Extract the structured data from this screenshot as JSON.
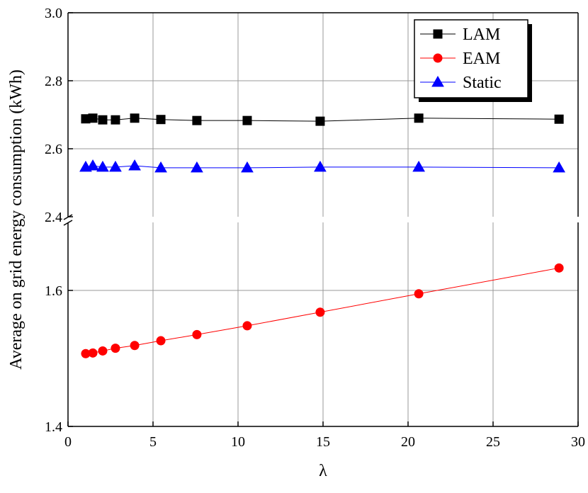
{
  "chart_data": [
    {
      "type": "line",
      "ylabel": "Average on grid energy consumption (kWh)",
      "x": [
        1.04,
        1.46,
        2.04,
        2.79,
        3.92,
        5.46,
        7.58,
        10.54,
        14.83,
        20.63,
        28.88
      ],
      "series": [
        {
          "name": "LAM",
          "color": "#000000",
          "marker": "square",
          "values": [
            2.688,
            2.69,
            2.685,
            2.685,
            2.69,
            2.686,
            2.683,
            2.683,
            2.681,
            2.69,
            2.687
          ]
        },
        {
          "name": "Static",
          "color": "#0000ff",
          "marker": "triangle",
          "values": [
            2.546,
            2.55,
            2.546,
            2.546,
            2.55,
            2.544,
            2.544,
            2.544,
            2.546,
            2.546,
            2.544
          ]
        }
      ],
      "xlim": [
        0,
        30
      ],
      "ylim": [
        2.4,
        3.0
      ],
      "yticks": [
        2.4,
        2.6,
        2.8,
        {
          "value": 3.0,
          "label": "3.0"
        }
      ],
      "grid": true,
      "legend": "upper-right"
    },
    {
      "type": "line",
      "xlabel": "λ",
      "x": [
        1.04,
        1.46,
        2.04,
        2.79,
        3.92,
        5.46,
        7.58,
        10.54,
        14.83,
        20.63,
        28.88
      ],
      "series": [
        {
          "name": "EAM",
          "color": "#ff0000",
          "marker": "circle",
          "values": [
            1.507,
            1.508,
            1.511,
            1.515,
            1.519,
            1.526,
            1.535,
            1.548,
            1.568,
            1.595,
            1.633
          ]
        }
      ],
      "xlim": [
        0,
        30
      ],
      "ylim": [
        1.4,
        1.7
      ],
      "xticks": [
        0,
        5,
        10,
        15,
        20,
        25,
        30
      ],
      "yticks": [
        1.4,
        1.6
      ],
      "grid": true
    }
  ]
}
